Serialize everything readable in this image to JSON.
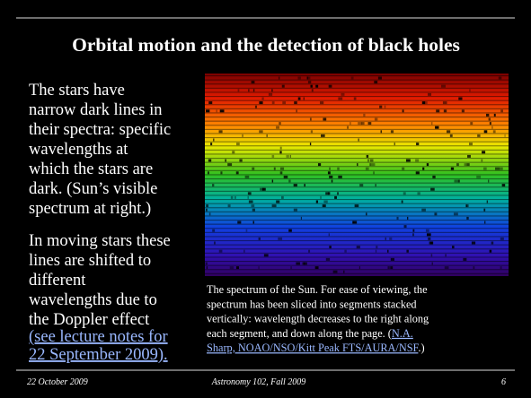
{
  "header": {
    "title": "Orbital motion and the detection of black holes"
  },
  "body": {
    "paragraph1": [
      "The stars have",
      "narrow dark lines in",
      "their spectra: specific",
      "wavelengths at",
      "which the stars are",
      "dark. (Sun’s visible",
      "spectrum at right.)"
    ],
    "paragraph2": [
      "In moving stars these",
      "lines are shifted to",
      "different",
      "wavelengths due to",
      "the Doppler effect"
    ],
    "link": [
      "(see lecture notes for",
      "22 September 2009)."
    ]
  },
  "caption": {
    "lines": [
      "The spectrum of the Sun. For ease of viewing, the",
      "spectrum has been sliced into segments stacked",
      "vertically: wavelength decreases to the right along",
      "each segment, and down along the page. ("
    ],
    "link": [
      "N.A.",
      "Sharp, NOAO/NSO/Kitt Peak FTS/AURA/NSF"
    ],
    "end": ".)"
  },
  "footer": {
    "date": "22 October 2009",
    "course": "Astronomy 102, Fall 2009",
    "page": "6"
  }
}
